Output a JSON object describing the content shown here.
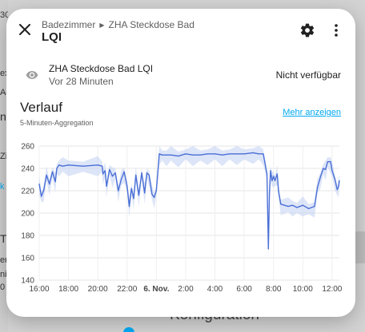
{
  "background": {
    "fragments": [
      "30",
      "ex",
      "A4",
      "nf",
      "Zi",
      "k",
      "T",
      "er",
      "ni",
      "0"
    ],
    "bottom_title": "Konfiguration"
  },
  "dialog": {
    "breadcrumb": {
      "area": "Badezimmer",
      "device": "ZHA Steckdose Bad"
    },
    "title": "LQI",
    "entity": {
      "name": "ZHA Steckdose Bad LQI",
      "last_changed": "Vor 28 Minuten",
      "state": "Nicht verfügbar",
      "icon": "eye-icon"
    },
    "history": {
      "title": "Verlauf",
      "subtitle": "5-Minuten-Aggregation",
      "more_link": "Mehr anzeigen"
    }
  },
  "colors": {
    "accent": "#03a9f4",
    "line": "#4a6fd6",
    "band": "#c7d3f3"
  },
  "chart_data": {
    "type": "line",
    "ylim": [
      140,
      260
    ],
    "y_ticks": [
      "260",
      "240",
      "220",
      "200",
      "180",
      "160",
      "140"
    ],
    "x_ticks": [
      "16:00",
      "18:00",
      "20:00",
      "22:00",
      "6. Nov.",
      "2:00",
      "4:00",
      "6:00",
      "8:00",
      "10:00",
      "12:00"
    ],
    "x_range_hours": [
      16,
      36.5
    ],
    "series": [
      {
        "hours": [
          16.0,
          16.15,
          16.3,
          16.5,
          16.7,
          16.9,
          17.1,
          17.2,
          17.35,
          17.6,
          18.0,
          19.0,
          20.0,
          20.3,
          20.35,
          20.5,
          20.6,
          20.8,
          21.0,
          21.2,
          21.4,
          21.6,
          21.8,
          22.0,
          22.15,
          22.3,
          22.45,
          22.6,
          22.8,
          23.0,
          23.2,
          23.35,
          23.5,
          23.7,
          23.85,
          24.0,
          24.2,
          24.4,
          24.7,
          25.0,
          25.5,
          26.0,
          26.5,
          27.0,
          27.5,
          28.0,
          28.5,
          29.0,
          29.5,
          30.0,
          30.6,
          31.0,
          31.3,
          31.55,
          31.65,
          31.72,
          31.8,
          31.9,
          32.0,
          32.1,
          32.25,
          32.35,
          32.5,
          33.0,
          33.3,
          33.6,
          34.0,
          34.4,
          34.8,
          35.0,
          35.2,
          35.4,
          35.55,
          35.7,
          35.9,
          36.0,
          36.2,
          36.35,
          36.45,
          36.5
        ],
        "values": [
          226,
          215,
          220,
          234,
          226,
          237,
          228,
          240,
          243,
          242,
          243,
          242,
          243,
          242,
          235,
          238,
          224,
          239,
          233,
          236,
          220,
          230,
          237,
          224,
          206,
          222,
          213,
          234,
          216,
          236,
          218,
          236,
          234,
          217,
          214,
          220,
          253,
          252,
          252,
          252,
          251,
          253,
          252,
          252,
          253,
          253,
          252,
          253,
          253,
          253,
          254,
          253,
          253,
          235,
          168,
          218,
          238,
          229,
          233,
          229,
          235,
          219,
          208,
          206,
          207,
          205,
          207,
          204,
          206,
          223,
          232,
          240,
          239,
          246,
          246,
          238,
          230,
          221,
          224,
          229
        ]
      }
    ]
  }
}
